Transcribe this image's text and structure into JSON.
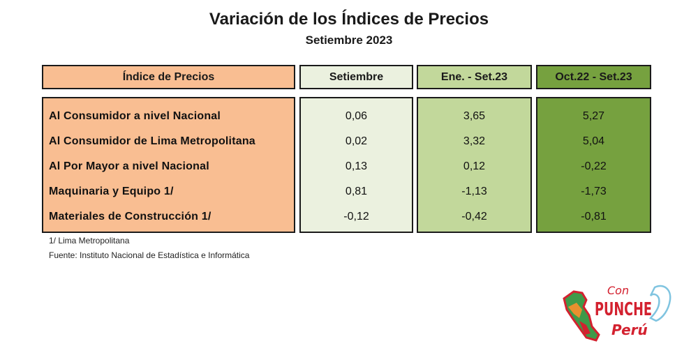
{
  "title": "Variación de los Índices de Precios",
  "subtitle": "Setiembre 2023",
  "table": {
    "headers": [
      "Índice de Precios",
      "Setiembre",
      "Ene. - Set.23",
      "Oct.22 - Set.23"
    ],
    "rows": [
      {
        "label": "Al Consumidor a nivel Nacional",
        "setiembre": "0,06",
        "ene_set": "3,65",
        "oct_set": "5,27"
      },
      {
        "label": "Al Consumidor de Lima Metropolitana",
        "setiembre": "0,02",
        "ene_set": "3,32",
        "oct_set": "5,04"
      },
      {
        "label": "Al Por Mayor a nivel Nacional",
        "setiembre": "0,13",
        "ene_set": "0,12",
        "oct_set": "-0,22"
      },
      {
        "label": "Maquinaria y Equipo 1/",
        "setiembre": "0,81",
        "ene_set": "-1,13",
        "oct_set": "-1,73"
      },
      {
        "label": "Materiales de Construcción 1/",
        "setiembre": "-0,12",
        "ene_set": "-0,42",
        "oct_set": "-0,81"
      }
    ]
  },
  "notes": {
    "footnote": "1/ Lima Metropolitana",
    "source": "Fuente: Instituto Nacional de Estadística e Informática"
  },
  "logo": {
    "line1": "Con",
    "line2": "PUNCHE",
    "line3": "Perú",
    "colors": {
      "red": "#d3212f",
      "orange": "#e8902e",
      "green": "#3f9a49",
      "blue": "#7fc4e0"
    }
  },
  "colors": {
    "col1": "#f9be92",
    "col2": "#ebf1df",
    "col3": "#c2d89b",
    "col4": "#76a13f"
  }
}
